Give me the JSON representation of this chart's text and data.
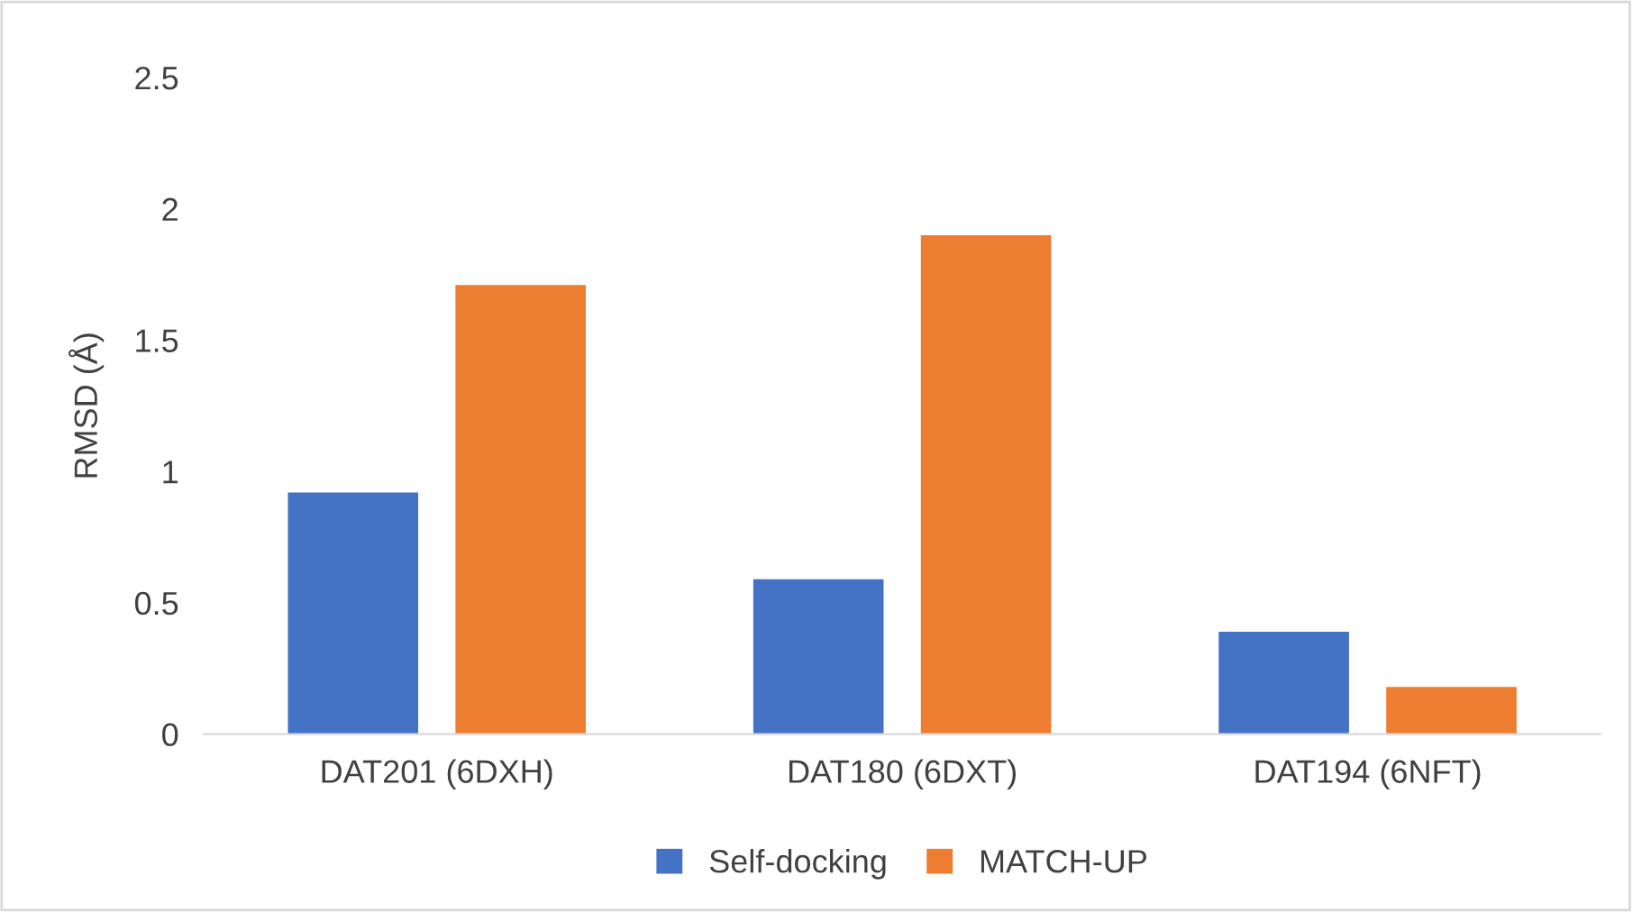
{
  "chart_data": {
    "type": "bar",
    "ylabel": "RMSD (Å)",
    "categories": [
      "DAT201 (6DXH)",
      "DAT180 (6DXT)",
      "DAT194 (6NFT)"
    ],
    "series": [
      {
        "name": "Self-docking",
        "color": "#4472c4",
        "values": [
          0.92,
          0.59,
          0.39
        ]
      },
      {
        "name": "MATCH-UP",
        "color": "#ed7d31",
        "values": [
          1.71,
          1.9,
          0.18
        ]
      }
    ],
    "ylim": [
      0,
      2.5
    ],
    "yticks": [
      0,
      0.5,
      1,
      1.5,
      2,
      2.5
    ],
    "grid": false,
    "legend": "bottom"
  }
}
